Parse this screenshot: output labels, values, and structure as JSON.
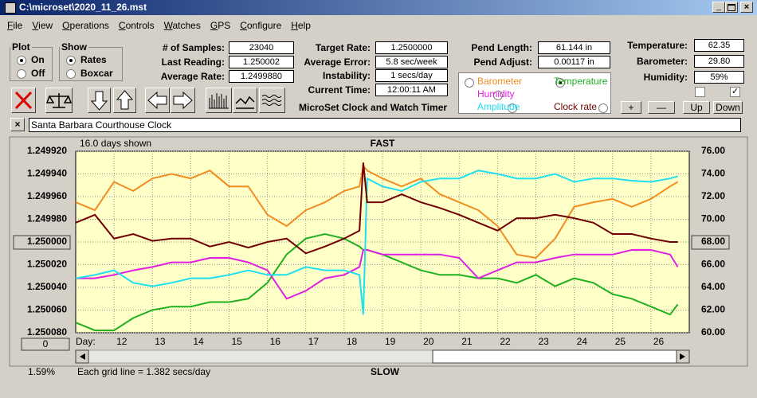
{
  "window": {
    "title": "C:\\microset\\2020_11_26.mst",
    "menu": [
      "File",
      "View",
      "Operations",
      "Controls",
      "Watches",
      "GPS",
      "Configure",
      "Help"
    ]
  },
  "plot_group": {
    "title": "Plot",
    "options": [
      "On",
      "Off"
    ],
    "selected": 0
  },
  "show_group": {
    "title": "Show",
    "options": [
      "Rates",
      "Boxcar"
    ],
    "selected": 0
  },
  "readings": [
    {
      "label": "# of Samples:",
      "value": "23040"
    },
    {
      "label": "Last Reading:",
      "value": "1.250002"
    },
    {
      "label": "Average Rate:",
      "value": "1.2499880"
    }
  ],
  "timing": [
    {
      "label": "Target Rate:",
      "value": "1.2500000"
    },
    {
      "label": "Average Error:",
      "value": "5.8 sec/week"
    },
    {
      "label": "Instability:",
      "value": "1 secs/day"
    },
    {
      "label": "Current Time:",
      "value": "12:00:11 AM"
    }
  ],
  "caption": "MicroSet Clock and Watch Timer",
  "pendulum": [
    {
      "label": "Pend Length:",
      "value": "61.144 in"
    },
    {
      "label": "Pend Adjust:",
      "value": "0.00117 in"
    }
  ],
  "environment": [
    {
      "label": "Temperature:",
      "value": "62.35"
    },
    {
      "label": "Barometer:",
      "value": "29.80"
    },
    {
      "label": "Humidity:",
      "value": "59%"
    }
  ],
  "checkboxes": [
    false,
    true
  ],
  "buttons": [
    "+",
    "—",
    "Up",
    "Down"
  ],
  "clock_name": "Santa Barbara Courthouse Clock",
  "chart_data": {
    "type": "line",
    "days_shown": "16.0 days shown",
    "top_label": "FAST",
    "bottom_label": "SLOW",
    "grid_note": "Each grid line = 1.382 secs/day",
    "percent": "1.59%",
    "offset_button": "0",
    "x_label": "Day:",
    "x": [
      11,
      11.5,
      12,
      12.5,
      13,
      13.5,
      14,
      14.5,
      15,
      15.5,
      16,
      16.5,
      17,
      17.5,
      18,
      18.4,
      18.5,
      18.6,
      19,
      19.5,
      20,
      20.5,
      21,
      21.5,
      22,
      22.5,
      23,
      23.5,
      24,
      24.5,
      25,
      25.5,
      26,
      26.5,
      26.7
    ],
    "xlim": [
      11,
      27
    ],
    "xticks": [
      12,
      13,
      14,
      15,
      16,
      17,
      18,
      19,
      20,
      21,
      22,
      23,
      24,
      25,
      26
    ],
    "ylim": [
      1.25008,
      1.24992
    ],
    "yticks": [
      {
        "value": 1.25008,
        "label": "1.250080"
      },
      {
        "value": 1.25006,
        "label": "1.250060"
      },
      {
        "value": 1.25004,
        "label": "1.250040"
      },
      {
        "value": 1.25002,
        "label": "1.250020"
      },
      {
        "value": 1.25,
        "label": "1.250000"
      },
      {
        "value": 1.24998,
        "label": "1.249980"
      },
      {
        "value": 1.24996,
        "label": "1.249960"
      },
      {
        "value": 1.24994,
        "label": "1.249940"
      },
      {
        "value": 1.24992,
        "label": "1.249920"
      }
    ],
    "y2lim": [
      60,
      76
    ],
    "y2ticks": [
      {
        "value": 60,
        "label": "60.00"
      },
      {
        "value": 62,
        "label": "62.00"
      },
      {
        "value": 64,
        "label": "64.00"
      },
      {
        "value": 66,
        "label": "66.00"
      },
      {
        "value": 68,
        "label": "68.00"
      },
      {
        "value": 70,
        "label": "70.00"
      },
      {
        "value": 72,
        "label": "72.00"
      },
      {
        "value": 74,
        "label": "74.00"
      },
      {
        "value": 76,
        "label": "76.00"
      }
    ],
    "grid": true,
    "series": [
      {
        "name": "Barometer",
        "color": "#f08c20",
        "axis": "y2",
        "values": [
          71.5,
          70.8,
          73.3,
          72.5,
          73.6,
          74.0,
          73.6,
          74.3,
          72.9,
          72.9,
          70.4,
          69.4,
          70.8,
          71.5,
          72.5,
          72.9,
          74.7,
          74.3,
          73.6,
          72.9,
          73.6,
          72.2,
          71.5,
          70.8,
          69.4,
          66.9,
          66.6,
          68.3,
          71.1,
          71.5,
          71.8,
          71.1,
          71.8,
          72.9,
          73.3
        ]
      },
      {
        "name": "Temperature",
        "color": "#20b020",
        "axis": "y2",
        "selected": true,
        "values": [
          60.9,
          60.2,
          60.2,
          61.3,
          62.0,
          62.3,
          62.3,
          62.7,
          62.7,
          63.0,
          64.4,
          66.9,
          68.3,
          68.7,
          68.3,
          67.6,
          67.3,
          67.3,
          66.9,
          66.2,
          65.5,
          65.1,
          65.1,
          64.8,
          64.8,
          64.4,
          65.1,
          64.1,
          64.8,
          64.4,
          63.4,
          63.0,
          62.3,
          61.6,
          62.5
        ]
      },
      {
        "name": "Humidity",
        "color": "#e020e0",
        "axis": "y2",
        "values": [
          64.8,
          64.8,
          65.1,
          65.5,
          65.8,
          66.2,
          66.2,
          66.6,
          66.6,
          66.2,
          65.5,
          63.0,
          63.7,
          64.8,
          65.1,
          65.8,
          67.3,
          67.3,
          66.9,
          66.9,
          66.9,
          66.9,
          66.6,
          64.8,
          65.5,
          66.2,
          66.2,
          66.6,
          66.9,
          66.9,
          66.9,
          67.3,
          67.3,
          66.9,
          65.8
        ]
      },
      {
        "name": "Amplitude",
        "color": "#20e0f0",
        "axis": "y2",
        "values": [
          64.8,
          65.1,
          65.5,
          64.4,
          64.1,
          64.4,
          64.8,
          64.8,
          65.1,
          65.5,
          65.1,
          65.1,
          65.8,
          65.5,
          65.5,
          65.1,
          61.6,
          73.6,
          72.9,
          72.5,
          73.3,
          73.6,
          73.6,
          74.3,
          74.0,
          73.6,
          73.6,
          74.0,
          73.3,
          73.6,
          73.6,
          73.4,
          73.3,
          73.6,
          73.8
        ]
      },
      {
        "name": "Clock rate",
        "color": "#700000",
        "axis": "y",
        "values": [
          1.249983,
          1.249976,
          1.249997,
          1.249993,
          1.249999,
          1.249997,
          1.249997,
          1.250004,
          1.25,
          1.250005,
          1.25,
          1.249997,
          1.25001,
          1.250004,
          1.249997,
          1.24999,
          1.24993,
          1.249965,
          1.249965,
          1.249958,
          1.249965,
          1.24997,
          1.249976,
          1.249983,
          1.24999,
          1.249979,
          1.249979,
          1.249976,
          1.249979,
          1.249983,
          1.249993,
          1.249993,
          1.249997,
          1.25,
          1.25
        ]
      }
    ]
  }
}
